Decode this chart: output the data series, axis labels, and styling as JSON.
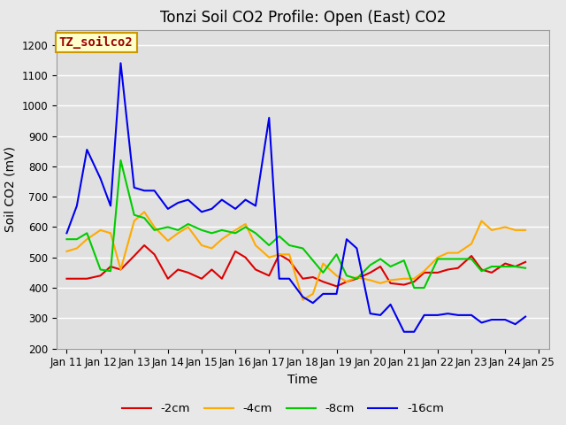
{
  "title": "Tonzi Soil CO2 Profile: Open (East) CO2",
  "xlabel": "Time",
  "ylabel": "Soil CO2 (mV)",
  "ylim": [
    200,
    1250
  ],
  "watermark": "TZ_soilco2",
  "series": [
    {
      "label": "-2cm",
      "color": "#dd0000",
      "x": [
        11,
        11.3,
        11.6,
        12,
        12.3,
        12.6,
        13,
        13.3,
        13.6,
        14,
        14.3,
        14.6,
        15,
        15.3,
        15.6,
        16,
        16.3,
        16.6,
        17,
        17.3,
        17.6,
        18,
        18.3,
        18.6,
        19,
        19.3,
        19.6,
        20,
        20.3,
        20.6,
        21,
        21.3,
        21.6,
        22,
        22.3,
        22.6,
        23,
        23.3,
        23.6,
        24,
        24.3,
        24.6
      ],
      "y": [
        430,
        430,
        430,
        440,
        470,
        460,
        505,
        540,
        510,
        430,
        460,
        450,
        430,
        460,
        430,
        520,
        500,
        460,
        440,
        510,
        490,
        430,
        435,
        420,
        405,
        420,
        430,
        450,
        470,
        415,
        410,
        420,
        450,
        450,
        460,
        465,
        505,
        460,
        450,
        480,
        470,
        485
      ]
    },
    {
      "label": "-4cm",
      "color": "#ffaa00",
      "x": [
        11,
        11.3,
        11.6,
        12,
        12.3,
        12.6,
        13,
        13.3,
        13.6,
        14,
        14.3,
        14.6,
        15,
        15.3,
        15.6,
        16,
        16.3,
        16.6,
        17,
        17.3,
        17.6,
        18,
        18.3,
        18.6,
        19,
        19.3,
        19.6,
        20,
        20.3,
        20.6,
        21,
        21.3,
        21.6,
        22,
        22.3,
        22.6,
        23,
        23.3,
        23.6,
        24,
        24.3,
        24.6
      ],
      "y": [
        520,
        530,
        560,
        590,
        580,
        460,
        620,
        650,
        600,
        555,
        580,
        600,
        540,
        530,
        560,
        590,
        610,
        540,
        500,
        510,
        510,
        360,
        380,
        480,
        440,
        420,
        435,
        425,
        415,
        425,
        430,
        430,
        455,
        500,
        515,
        515,
        545,
        620,
        590,
        600,
        590,
        590
      ]
    },
    {
      "label": "-8cm",
      "color": "#00cc00",
      "x": [
        11,
        11.3,
        11.6,
        12,
        12.3,
        12.6,
        13,
        13.3,
        13.6,
        14,
        14.3,
        14.6,
        15,
        15.3,
        15.6,
        16,
        16.3,
        16.6,
        17,
        17.3,
        17.6,
        18,
        18.3,
        18.6,
        19,
        19.3,
        19.6,
        20,
        20.3,
        20.6,
        21,
        21.3,
        21.6,
        22,
        22.3,
        22.6,
        23,
        23.3,
        23.6,
        24,
        24.3,
        24.6
      ],
      "y": [
        560,
        560,
        580,
        460,
        455,
        820,
        640,
        630,
        590,
        600,
        590,
        610,
        590,
        580,
        590,
        580,
        600,
        580,
        540,
        570,
        540,
        530,
        490,
        450,
        510,
        440,
        430,
        475,
        495,
        470,
        490,
        400,
        400,
        495,
        495,
        495,
        495,
        455,
        470,
        470,
        470,
        465
      ]
    },
    {
      "label": "-16cm",
      "color": "#0000ee",
      "x": [
        11,
        11.3,
        11.6,
        12,
        12.3,
        12.6,
        13,
        13.3,
        13.6,
        14,
        14.3,
        14.6,
        15,
        15.3,
        15.6,
        16,
        16.3,
        16.6,
        17,
        17.3,
        17.6,
        18,
        18.3,
        18.6,
        19,
        19.3,
        19.6,
        20,
        20.3,
        20.6,
        21,
        21.3,
        21.6,
        22,
        22.3,
        22.6,
        23,
        23.3,
        23.6,
        24,
        24.3,
        24.6
      ],
      "y": [
        580,
        670,
        855,
        760,
        670,
        1140,
        730,
        720,
        720,
        660,
        680,
        690,
        650,
        660,
        690,
        660,
        690,
        670,
        960,
        430,
        430,
        370,
        350,
        380,
        380,
        560,
        530,
        315,
        310,
        345,
        255,
        255,
        310,
        310,
        315,
        310,
        310,
        285,
        295,
        295,
        280,
        305
      ]
    }
  ],
  "xtick_labels": [
    "Jan 11",
    "Jan 12",
    "Jan 13",
    "Jan 14",
    "Jan 15",
    "Jan 16",
    "Jan 17",
    "Jan 18",
    "Jan 19",
    "Jan 20",
    "Jan 21",
    "Jan 22",
    "Jan 23",
    "Jan 24",
    "Jan 25"
  ],
  "xtick_positions": [
    11,
    12,
    13,
    14,
    15,
    16,
    17,
    18,
    19,
    20,
    21,
    22,
    23,
    24,
    25
  ],
  "yticks": [
    200,
    300,
    400,
    500,
    600,
    700,
    800,
    900,
    1000,
    1100,
    1200
  ],
  "title_fontsize": 12,
  "label_fontsize": 10,
  "tick_fontsize": 8.5,
  "legend_fontsize": 9.5,
  "watermark_fontsize": 10,
  "line_width": 1.5
}
